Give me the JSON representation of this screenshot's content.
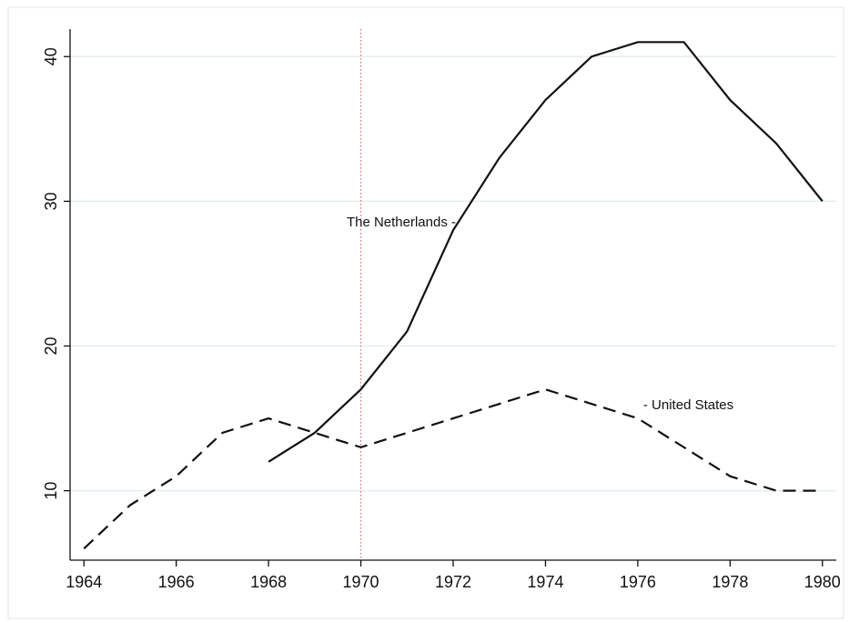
{
  "chart_data": {
    "type": "line",
    "x": [
      1964,
      1965,
      1966,
      1967,
      1968,
      1969,
      1970,
      1971,
      1972,
      1973,
      1974,
      1975,
      1976,
      1977,
      1978,
      1979,
      1980
    ],
    "series": [
      {
        "name": "The Netherlands -",
        "color": "#111111",
        "dash": "solid",
        "values": [
          null,
          null,
          null,
          null,
          12,
          14,
          17,
          21,
          28,
          33,
          37,
          40,
          41,
          41,
          37,
          34,
          30
        ]
      },
      {
        "name": "- United States",
        "color": "#111111",
        "dash": "dashed",
        "values": [
          6,
          9,
          11,
          14,
          15,
          14,
          13,
          14,
          15,
          16,
          17,
          16,
          15,
          13,
          11,
          10,
          10
        ]
      }
    ],
    "xlim": [
      1963.7,
      1980.3
    ],
    "xticks": [
      1964,
      1966,
      1968,
      1970,
      1972,
      1974,
      1976,
      1978,
      1980
    ],
    "ylim": [
      5.2,
      41.9
    ],
    "yticks": [
      10,
      20,
      30,
      40
    ],
    "grid": true,
    "reference_line_x": 1970,
    "reference_line_color": "#d9707a"
  }
}
